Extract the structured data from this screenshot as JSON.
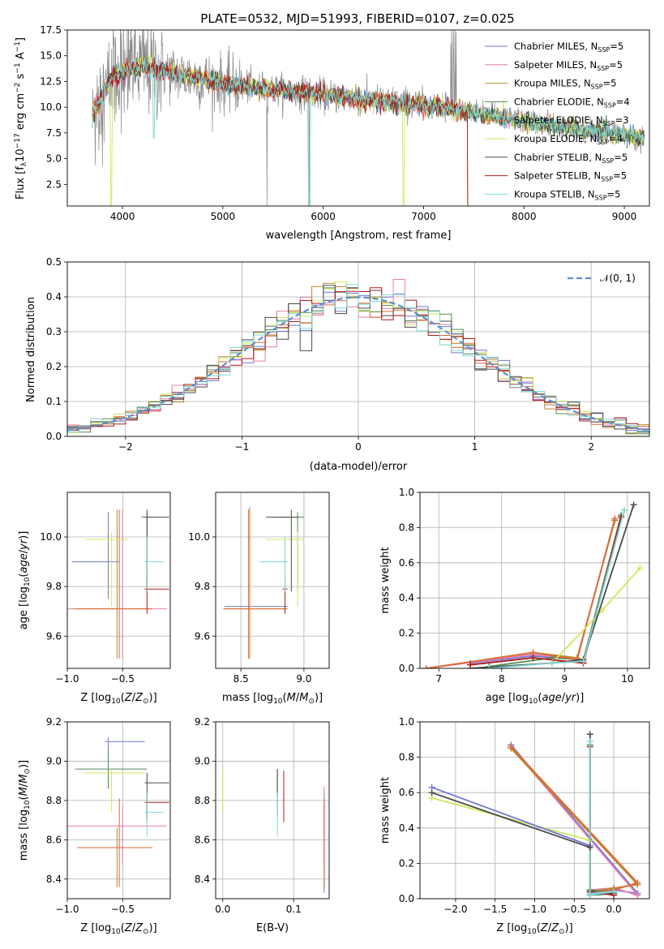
{
  "figure_title": "PLATE=0532, MJD=51993, FIBERID=0107, z=0.025",
  "models": [
    {
      "imf": "Chabrier",
      "lib": "MILES",
      "nssp": "5",
      "color": "#6f77d4"
    },
    {
      "imf": "Salpeter",
      "lib": "MILES",
      "nssp": "5",
      "color": "#e57fb3"
    },
    {
      "imf": "Kroupa",
      "lib": "MILES",
      "nssp": "5",
      "color": "#b58a2e"
    },
    {
      "imf": "Chabrier",
      "lib": "ELODIE",
      "nssp": "4",
      "color": "#4f8a4f"
    },
    {
      "imf": "Salpeter",
      "lib": "ELODIE",
      "nssp": "3",
      "color": "#e06a3a"
    },
    {
      "imf": "Kroupa",
      "lib": "ELODIE",
      "nssp": "4",
      "color": "#cfe85a"
    },
    {
      "imf": "Chabrier",
      "lib": "STELIB",
      "nssp": "5",
      "color": "#4a4a4a"
    },
    {
      "imf": "Salpeter",
      "lib": "STELIB",
      "nssp": "5",
      "color": "#b01818"
    },
    {
      "imf": "Kroupa",
      "lib": "STELIB",
      "nssp": "5",
      "color": "#7fd6d6"
    }
  ],
  "chart_data": [
    {
      "id": "spectrum",
      "type": "line",
      "xlabel": "wavelength [Angstrom, rest frame]",
      "ylabel": "Flux [f_λ 10^-17 erg cm^-2 s^-1 A^-1]",
      "xlim": [
        3450,
        9250
      ],
      "ylim": [
        0.4,
        17.5
      ],
      "xticks": [
        4000,
        5000,
        6000,
        7000,
        8000,
        9000
      ],
      "yticks": [
        2.5,
        5.0,
        7.5,
        10.0,
        12.5,
        15.0,
        17.5
      ],
      "ytick_labels": [
        "2.5",
        "5.0",
        "7.5",
        "10.0",
        "12.5",
        "15.0",
        "17.5"
      ],
      "legend_location": "upper-right",
      "continuum": [
        [
          3700,
          9.2
        ],
        [
          3900,
          13.0
        ],
        [
          4200,
          14.0
        ],
        [
          4500,
          13.3
        ],
        [
          5000,
          12.3
        ],
        [
          5500,
          11.7
        ],
        [
          6000,
          11.2
        ],
        [
          6500,
          10.6
        ],
        [
          7000,
          10.2
        ],
        [
          7500,
          9.5
        ],
        [
          8000,
          8.6
        ],
        [
          8500,
          7.9
        ],
        [
          9000,
          7.3
        ],
        [
          9200,
          7.1
        ]
      ],
      "data_line_color": "#888888"
    },
    {
      "id": "residuals",
      "type": "histogram",
      "xlabel": "(data-model)/error",
      "ylabel": "Normed distribution",
      "xlim": [
        -2.5,
        2.5
      ],
      "ylim": [
        0,
        0.5
      ],
      "xticks": [
        -2,
        -1,
        0,
        1,
        2
      ],
      "xtick_labels": [
        "−2",
        "−1",
        "0",
        "1",
        "2"
      ],
      "yticks": [
        0.0,
        0.1,
        0.2,
        0.3,
        0.4,
        0.5
      ],
      "ytick_labels": [
        "0.0",
        "0.1",
        "0.2",
        "0.3",
        "0.4",
        "0.5"
      ],
      "bin_width": 0.1,
      "gaussian": {
        "mean": 0,
        "sigma": 1,
        "color": "#5b8fd4",
        "label": "𝒩(0, 1)"
      },
      "legend_location": "upper-right"
    },
    {
      "id": "age-vs-z",
      "type": "errorbar",
      "xlabel": "Z [log10(Z/Z⊙)]",
      "ylabel": "age  [log10(age/yr)]",
      "xlim": [
        -1.0,
        -0.07
      ],
      "ylim": [
        9.47,
        10.18
      ],
      "xticks": [
        -1.0,
        -0.5
      ],
      "xtick_labels": [
        "−1.0",
        "−0.5"
      ],
      "yticks": [
        9.6,
        9.8,
        10.0
      ],
      "ytick_labels": [
        "9.6",
        "9.8",
        "10.0"
      ],
      "points": [
        {
          "m": 0,
          "x": -0.63,
          "xerr": [
            0.33,
            0.1
          ],
          "y": 9.9,
          "yerr": [
            0.15,
            0.2
          ]
        },
        {
          "m": 1,
          "x": -0.5,
          "xerr": [
            0.5,
            0.4
          ],
          "y": 9.71,
          "yerr": [
            0.2,
            0.4
          ]
        },
        {
          "m": 2,
          "x": -0.55,
          "xerr": [
            0.4,
            0.3
          ],
          "y": 9.71,
          "yerr": [
            0.2,
            0.4
          ]
        },
        {
          "m": 3,
          "x": -0.28,
          "xerr": [
            0.05,
            0.05
          ],
          "y": 10.08,
          "yerr": [
            0.3,
            0.02
          ]
        },
        {
          "m": 4,
          "x": -0.53,
          "xerr": [
            0.38,
            0.3
          ],
          "y": 9.71,
          "yerr": [
            0.2,
            0.4
          ]
        },
        {
          "m": 5,
          "x": -0.6,
          "xerr": [
            0.25,
            0.15
          ],
          "y": 9.99,
          "yerr": [
            0.27,
            0.03
          ]
        },
        {
          "m": 6,
          "x": -0.28,
          "xerr": [
            0.02,
            0.2
          ],
          "y": 10.08,
          "yerr": [
            0.3,
            0.03
          ]
        },
        {
          "m": 7,
          "x": -0.28,
          "xerr": [
            0.02,
            0.2
          ],
          "y": 9.79,
          "yerr": [
            0.1,
            0.05
          ]
        },
        {
          "m": 8,
          "x": -0.28,
          "xerr": [
            0.02,
            0.15
          ],
          "y": 9.9,
          "yerr": [
            0.12,
            0.1
          ]
        }
      ]
    },
    {
      "id": "age-vs-mass",
      "type": "errorbar",
      "xlabel": "mass [log10(M/M⊙)]",
      "ylabel": "",
      "xlim": [
        8.3,
        9.2
      ],
      "ylim": [
        9.47,
        10.18
      ],
      "xticks": [
        8.5,
        9.0
      ],
      "xtick_labels": [
        "8.5",
        "9.0"
      ],
      "yticks": [
        9.6,
        9.8,
        10.0
      ],
      "ytick_labels": [
        "9.6",
        "9.8",
        "10.0"
      ],
      "points": [
        {
          "m": 0,
          "x": 8.57,
          "xerr": [
            0.2,
            0.3
          ],
          "y": 9.72,
          "yerr": [
            0.2,
            0.4
          ]
        },
        {
          "m": 1,
          "x": 8.57,
          "xerr": [
            0.2,
            0.3
          ],
          "y": 9.71,
          "yerr": [
            0.2,
            0.4
          ]
        },
        {
          "m": 2,
          "x": 8.57,
          "xerr": [
            0.2,
            0.3
          ],
          "y": 9.71,
          "yerr": [
            0.2,
            0.4
          ]
        },
        {
          "m": 3,
          "x": 8.95,
          "xerr": [
            0.2,
            0.05
          ],
          "y": 10.08,
          "yerr": [
            0.3,
            0.02
          ]
        },
        {
          "m": 4,
          "x": 8.56,
          "xerr": [
            0.2,
            0.3
          ],
          "y": 9.71,
          "yerr": [
            0.2,
            0.4
          ]
        },
        {
          "m": 5,
          "x": 8.95,
          "xerr": [
            0.25,
            0.05
          ],
          "y": 9.99,
          "yerr": [
            0.27,
            0.03
          ]
        },
        {
          "m": 6,
          "x": 8.9,
          "xerr": [
            0.2,
            0.05
          ],
          "y": 10.08,
          "yerr": [
            0.3,
            0.03
          ]
        },
        {
          "m": 7,
          "x": 8.85,
          "xerr": [
            0.02,
            0.02
          ],
          "y": 9.79,
          "yerr": [
            0.1,
            0.05
          ]
        },
        {
          "m": 8,
          "x": 8.85,
          "xerr": [
            0.2,
            0.02
          ],
          "y": 9.9,
          "yerr": [
            0.12,
            0.1
          ]
        }
      ]
    },
    {
      "id": "weight-vs-age",
      "type": "line",
      "xlabel": "age  [log10(age/yr)]",
      "ylabel": "mass weight",
      "xlim": [
        6.7,
        10.35
      ],
      "ylim": [
        0,
        1.0
      ],
      "xticks": [
        7,
        8,
        9,
        10
      ],
      "xtick_labels": [
        "7",
        "8",
        "9",
        "10"
      ],
      "yticks": [
        0.0,
        0.2,
        0.4,
        0.6,
        0.8,
        1.0
      ],
      "ytick_labels": [
        "0.0",
        "0.2",
        "0.4",
        "0.6",
        "0.8",
        "1.0"
      ],
      "series": [
        {
          "m": 0,
          "x": [
            7.5,
            8.5,
            9.2,
            9.8
          ],
          "y": [
            0.03,
            0.07,
            0.05,
            0.85
          ]
        },
        {
          "m": 1,
          "x": [
            6.8,
            8.5,
            9.2,
            9.8
          ],
          "y": [
            0.0,
            0.08,
            0.05,
            0.85
          ]
        },
        {
          "m": 2,
          "x": [
            6.8,
            8.5,
            9.2,
            9.8
          ],
          "y": [
            0.0,
            0.09,
            0.06,
            0.84
          ]
        },
        {
          "m": 3,
          "x": [
            7.8,
            8.8,
            9.3,
            9.9
          ],
          "y": [
            0.01,
            0.06,
            0.05,
            0.87
          ]
        },
        {
          "m": 4,
          "x": [
            6.8,
            8.5,
            9.2,
            9.8
          ],
          "y": [
            0.0,
            0.09,
            0.05,
            0.85
          ]
        },
        {
          "m": 5,
          "x": [
            7.5,
            8.8,
            9.6,
            10.2
          ],
          "y": [
            0.0,
            0.03,
            0.33,
            0.57
          ]
        },
        {
          "m": 6,
          "x": [
            7.5,
            8.8,
            9.3,
            10.1
          ],
          "y": [
            0.0,
            0.03,
            0.05,
            0.93
          ]
        },
        {
          "m": 7,
          "x": [
            7.5,
            8.5,
            9.3,
            9.9
          ],
          "y": [
            0.02,
            0.06,
            0.03,
            0.86
          ]
        },
        {
          "m": 8,
          "x": [
            7.8,
            8.8,
            9.3,
            9.95
          ],
          "y": [
            0.0,
            0.03,
            0.04,
            0.9
          ]
        }
      ]
    },
    {
      "id": "mass-vs-z",
      "type": "errorbar",
      "xlabel": "Z [log10(Z/Z⊙)]",
      "ylabel": "mass [log10(M/M⊙)]",
      "xlim": [
        -1.0,
        -0.07
      ],
      "ylim": [
        8.3,
        9.2
      ],
      "xticks": [
        -1.0,
        -0.5
      ],
      "xtick_labels": [
        "−1.0",
        "−0.5"
      ],
      "yticks": [
        8.4,
        8.6,
        8.8,
        9.0,
        9.2
      ],
      "ytick_labels": [
        "8.4",
        "8.6",
        "8.8",
        "9.0",
        "9.2"
      ],
      "points": [
        {
          "m": 0,
          "x": -0.63,
          "xerr": [
            0.03,
            0.33
          ],
          "y": 9.1,
          "yerr": [
            0.1,
            0.02
          ]
        },
        {
          "m": 1,
          "x": -0.5,
          "xerr": [
            0.5,
            0.4
          ],
          "y": 8.67,
          "yerr": [
            0.2,
            0.1
          ]
        },
        {
          "m": 2,
          "x": -0.55,
          "xerr": [
            0.35,
            0.05
          ],
          "y": 8.56,
          "yerr": [
            0.2,
            0.1
          ]
        },
        {
          "m": 3,
          "x": -0.63,
          "xerr": [
            0.3,
            0.35
          ],
          "y": 8.96,
          "yerr": [
            0.1,
            0.1
          ]
        },
        {
          "m": 4,
          "x": -0.53,
          "xerr": [
            0.38,
            0.3
          ],
          "y": 8.56,
          "yerr": [
            0.2,
            0.25
          ]
        },
        {
          "m": 5,
          "x": -0.6,
          "xerr": [
            0.25,
            0.3
          ],
          "y": 8.94,
          "yerr": [
            0.2,
            0.02
          ]
        },
        {
          "m": 6,
          "x": -0.28,
          "xerr": [
            0.02,
            0.2
          ],
          "y": 8.89,
          "yerr": [
            0.17,
            0.05
          ]
        },
        {
          "m": 7,
          "x": -0.28,
          "xerr": [
            0.02,
            0.2
          ],
          "y": 8.79,
          "yerr": [
            0.1,
            0.05
          ]
        },
        {
          "m": 8,
          "x": -0.28,
          "xerr": [
            0.02,
            0.15
          ],
          "y": 8.74,
          "yerr": [
            0.12,
            0.1
          ]
        }
      ]
    },
    {
      "id": "mass-vs-ebv",
      "type": "errorbar",
      "xlabel": "E(B-V)",
      "ylabel": "",
      "xlim": [
        -0.01,
        0.15
      ],
      "ylim": [
        8.3,
        9.2
      ],
      "xticks": [
        0.0,
        0.1
      ],
      "xtick_labels": [
        "0.0",
        "0.1"
      ],
      "yticks": [
        8.4,
        8.6,
        8.8,
        9.0,
        9.2
      ],
      "ytick_labels": [
        "8.4",
        "8.6",
        "8.8",
        "9.0",
        "9.2"
      ],
      "points": [
        {
          "m": 0,
          "x": 0.143,
          "xerr": [
            0,
            0
          ],
          "y": 8.56,
          "yerr": [
            0.23,
            0.3
          ]
        },
        {
          "m": 1,
          "x": 0.143,
          "xerr": [
            0,
            0
          ],
          "y": 8.67,
          "yerr": [
            0.2,
            0.2
          ]
        },
        {
          "m": 2,
          "x": 0.143,
          "xerr": [
            0,
            0
          ],
          "y": 8.56,
          "yerr": [
            0.2,
            0.25
          ]
        },
        {
          "m": 3,
          "x": 0.077,
          "xerr": [
            0,
            0
          ],
          "y": 8.96,
          "yerr": [
            0.14,
            0
          ]
        },
        {
          "m": 4,
          "x": 0.143,
          "xerr": [
            0,
            0
          ],
          "y": 8.56,
          "yerr": [
            0.2,
            0.25
          ]
        },
        {
          "m": 5,
          "x": 0.0,
          "xerr": [
            0,
            0
          ],
          "y": 8.94,
          "yerr": [
            0.2,
            0.02
          ]
        },
        {
          "m": 6,
          "x": 0.077,
          "xerr": [
            0,
            0
          ],
          "y": 8.89,
          "yerr": [
            0.17,
            0.07
          ]
        },
        {
          "m": 7,
          "x": 0.086,
          "xerr": [
            0,
            0
          ],
          "y": 8.79,
          "yerr": [
            0.1,
            0.16
          ]
        },
        {
          "m": 8,
          "x": 0.077,
          "xerr": [
            0,
            0
          ],
          "y": 8.74,
          "yerr": [
            0.12,
            0.1
          ]
        }
      ]
    },
    {
      "id": "weight-vs-z",
      "type": "line",
      "xlabel": "Z [log10(Z/Z⊙)]",
      "ylabel": "mass weight",
      "xlim": [
        -2.45,
        0.45
      ],
      "ylim": [
        0,
        1.0
      ],
      "xticks": [
        -2.0,
        -1.5,
        -1.0,
        -0.5,
        0.0
      ],
      "xtick_labels": [
        "−2.0",
        "−1.5",
        "−1.0",
        "−0.5",
        "0.0"
      ],
      "yticks": [
        0.0,
        0.2,
        0.4,
        0.6,
        0.8,
        1.0
      ],
      "ytick_labels": [
        "0.0",
        "0.2",
        "0.4",
        "0.6",
        "0.8",
        "1.0"
      ],
      "series": [
        {
          "m": 0,
          "x": [
            -1.3,
            0.3,
            0.0,
            -0.3
          ],
          "y": [
            0.87,
            0.03,
            0.05,
            0.04
          ]
        },
        {
          "m": 1,
          "x": [
            -1.3,
            0.3,
            0.0,
            -0.3
          ],
          "y": [
            0.86,
            0.02,
            0.06,
            0.05
          ]
        },
        {
          "m": 2,
          "x": [
            -1.3,
            0.3,
            0.0,
            -0.3
          ],
          "y": [
            0.85,
            0.08,
            0.06,
            0.04
          ]
        },
        {
          "m": 3,
          "x": [
            -0.3,
            -0.3,
            0.0,
            -0.3
          ],
          "y": [
            0.87,
            0.02,
            0.03,
            0.05
          ]
        },
        {
          "m": 4,
          "x": [
            -1.3,
            0.3,
            0.0,
            -0.3
          ],
          "y": [
            0.86,
            0.09,
            0.05,
            0.03
          ]
        },
        {
          "m": 5,
          "x": [
            -2.3,
            -0.3,
            -0.3,
            0.0
          ],
          "y": [
            0.57,
            0.33,
            0.02,
            0.03
          ]
        },
        {
          "m": 6,
          "x": [
            -0.3,
            -0.3,
            0.0,
            -0.3
          ],
          "y": [
            0.93,
            0.02,
            0.03,
            0.03
          ]
        },
        {
          "m": 7,
          "x": [
            -0.3,
            -0.3,
            0.0,
            -0.3
          ],
          "y": [
            0.86,
            0.04,
            0.02,
            0.04
          ]
        },
        {
          "m": 8,
          "x": [
            -0.3,
            -0.3,
            0.0,
            -0.3
          ],
          "y": [
            0.89,
            0.03,
            0.04,
            0.02
          ]
        },
        {
          "m": 0,
          "x": [
            -2.3,
            -0.3
          ],
          "y": [
            0.63,
            0.3
          ]
        },
        {
          "m": 6,
          "x": [
            -2.3,
            -0.3
          ],
          "y": [
            0.6,
            0.29
          ]
        }
      ]
    }
  ]
}
